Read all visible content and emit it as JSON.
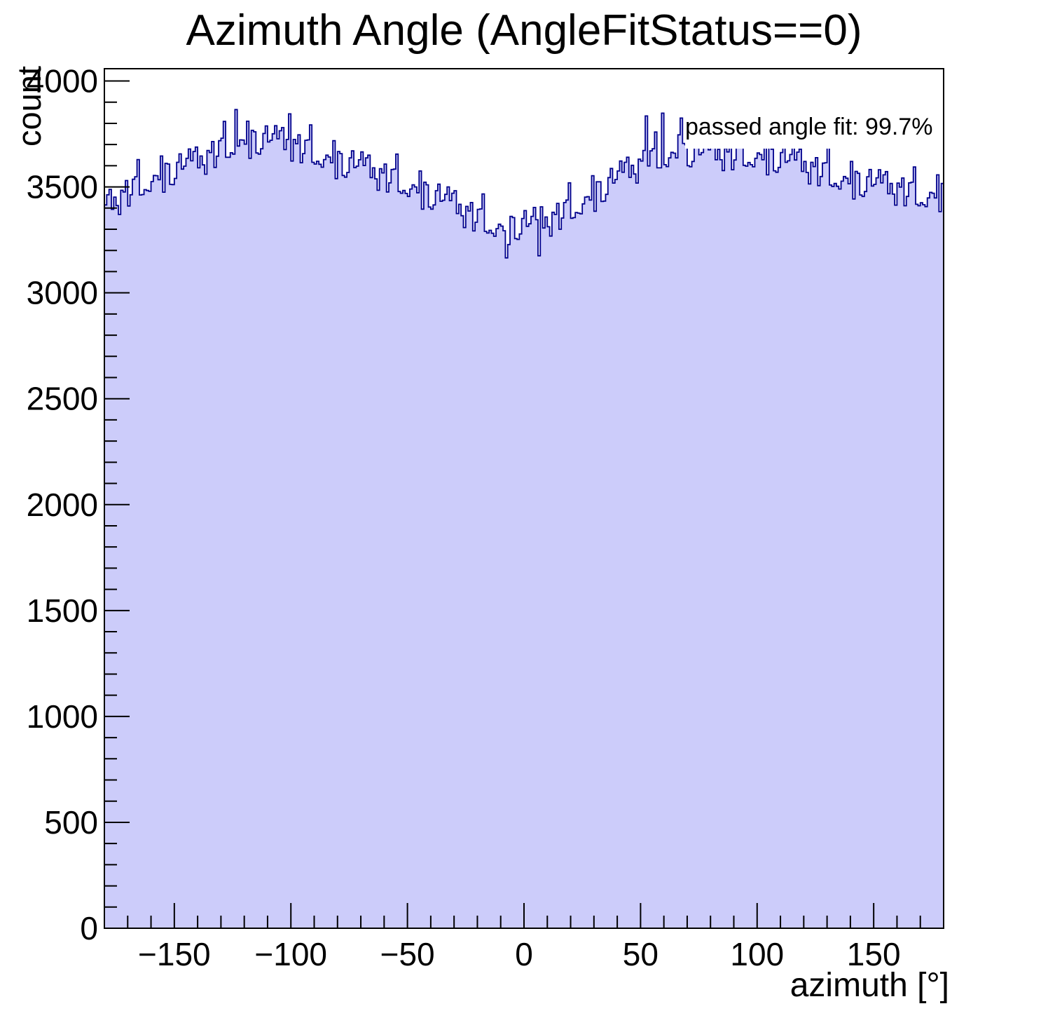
{
  "title": "Azimuth Angle (AngleFitStatus==0)",
  "annotation": "passed angle fit: 99.7%",
  "colors": {
    "histogram_fill": "#ccccfa",
    "histogram_line": "#00008b",
    "axis": "#000000",
    "background": "#ffffff",
    "annotation_background": "#ffffff"
  },
  "chart_data": {
    "type": "bar",
    "subtype": "histogram-step-filled",
    "title": "Azimuth Angle (AngleFitStatus==0)",
    "xlabel": "azimuth [°]",
    "ylabel": "count",
    "xlim": [
      -180,
      180
    ],
    "ylim": [
      0,
      4058
    ],
    "x_start": -180,
    "bin_width": 1,
    "x_major_ticks": [
      -150,
      -100,
      -50,
      0,
      50,
      100,
      150
    ],
    "x_minor_step": 10,
    "y_major_ticks": [
      0,
      500,
      1000,
      1500,
      2000,
      2500,
      3000,
      3500,
      4000
    ],
    "y_minor_step": 100,
    "grid": false,
    "legend": false,
    "annotation": "passed angle fit: 99.7%",
    "values": [
      3415,
      3463,
      3488,
      3394,
      3452,
      3412,
      3370,
      3484,
      3476,
      3530,
      3410,
      3463,
      3536,
      3548,
      3629,
      3462,
      3464,
      3487,
      3483,
      3479,
      3525,
      3554,
      3553,
      3534,
      3646,
      3475,
      3611,
      3608,
      3512,
      3511,
      3540,
      3616,
      3656,
      3584,
      3598,
      3635,
      3679,
      3623,
      3667,
      3688,
      3590,
      3646,
      3604,
      3560,
      3672,
      3662,
      3714,
      3592,
      3645,
      3718,
      3730,
      3809,
      3640,
      3640,
      3661,
      3655,
      3865,
      3693,
      3722,
      3721,
      3702,
      3810,
      3635,
      3767,
      3760,
      3660,
      3655,
      3680,
      3752,
      3788,
      3712,
      3720,
      3751,
      3789,
      3727,
      3765,
      3780,
      3676,
      3724,
      3845,
      3622,
      3724,
      3704,
      3746,
      3614,
      3657,
      3720,
      3722,
      3793,
      3616,
      3608,
      3621,
      3607,
      3593,
      3629,
      3650,
      3641,
      3614,
      3718,
      3539,
      3667,
      3657,
      3554,
      3546,
      3568,
      3637,
      3670,
      3591,
      3598,
      3628,
      3665,
      3601,
      3637,
      3650,
      3544,
      3590,
      3538,
      3484,
      3586,
      3566,
      3608,
      3476,
      3519,
      3582,
      3584,
      3655,
      3478,
      3470,
      3483,
      3469,
      3455,
      3490,
      3510,
      3500,
      3472,
      3575,
      3395,
      3522,
      3510,
      3405,
      3395,
      3415,
      3482,
      3513,
      3432,
      3437,
      3465,
      3500,
      3435,
      3470,
      3482,
      3374,
      3418,
      3364,
      3308,
      3408,
      3386,
      3426,
      3292,
      3333,
      3394,
      3396,
      3467,
      3290,
      3282,
      3295,
      3281,
      3267,
      3303,
      3324,
      3315,
      3293,
      3165,
      3228,
      3361,
      3355,
      3256,
      3252,
      3278,
      3351,
      3388,
      3314,
      3326,
      3361,
      3403,
      3345,
      3175,
      3406,
      3306,
      3358,
      3312,
      3268,
      3380,
      3370,
      3422,
      3300,
      3353,
      3426,
      3438,
      3519,
      3352,
      3355,
      3379,
      3376,
      3373,
      3420,
      3452,
      3454,
      3438,
      3553,
      3385,
      3524,
      3524,
      3431,
      3433,
      3465,
      3544,
      3587,
      3518,
      3535,
      3575,
      3622,
      3569,
      3616,
      3640,
      3545,
      3602,
      3561,
      3518,
      3631,
      3622,
      3672,
      3835,
      3599,
      3670,
      3680,
      3759,
      3590,
      3590,
      3848,
      3605,
      3596,
      3637,
      3663,
      3659,
      3637,
      3746,
      3825,
      3705,
      3699,
      3600,
      3595,
      3620,
      3692,
      3728,
      3652,
      3662,
      3695,
      3735,
      3675,
      3715,
      3731,
      3628,
      3677,
      3628,
      3577,
      3682,
      3665,
      3710,
      3581,
      3627,
      3694,
      3700,
      3775,
      3602,
      3598,
      3615,
      3605,
      3595,
      3635,
      3660,
      3653,
      3628,
      3734,
      3557,
      3687,
      3678,
      3576,
      3569,
      3592,
      3662,
      3695,
      3616,
      3623,
      3653,
      3690,
      3627,
      3664,
      3678,
      3573,
      3620,
      3568,
      3514,
      3616,
      3596,
      3638,
      3506,
      3549,
      3612,
      3614,
      3685,
      3509,
      3502,
      3516,
      3503,
      3490,
      3527,
      3549,
      3541,
      3515,
      3620,
      3443,
      3573,
      3564,
      3462,
      3455,
      3478,
      3548,
      3582,
      3504,
      3512,
      3543,
      3581,
      3519,
      3557,
      3572,
      3468,
      3516,
      3466,
      3414,
      3518,
      3499,
      3542,
      3411,
      3455,
      3519,
      3522,
      3594,
      3418,
      3411,
      3425,
      3416,
      3407,
      3448,
      3474,
      3470,
      3448,
      3557,
      3383,
      3516
    ]
  }
}
